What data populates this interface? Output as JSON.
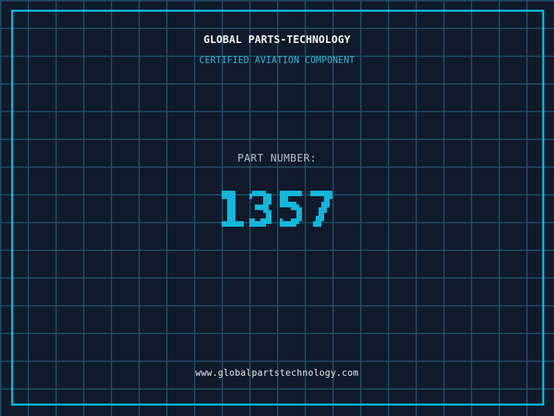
{
  "header": {
    "title": "GLOBAL PARTS-TECHNOLOGY",
    "subtitle": "CERTIFIED AVIATION COMPONENT"
  },
  "part": {
    "label": "PART NUMBER:",
    "number": "1357"
  },
  "footer": {
    "url": "www.globalpartstechnology.com"
  },
  "colors": {
    "background": "#101a2b",
    "grid_line": "#1d4a60",
    "frame_border": "#00b4d8",
    "title": "#f5f7f8",
    "subtitle": "#35b5d6",
    "part_label": "#b7bec6",
    "part_number": "#12b7da",
    "url": "#e6eaed"
  }
}
